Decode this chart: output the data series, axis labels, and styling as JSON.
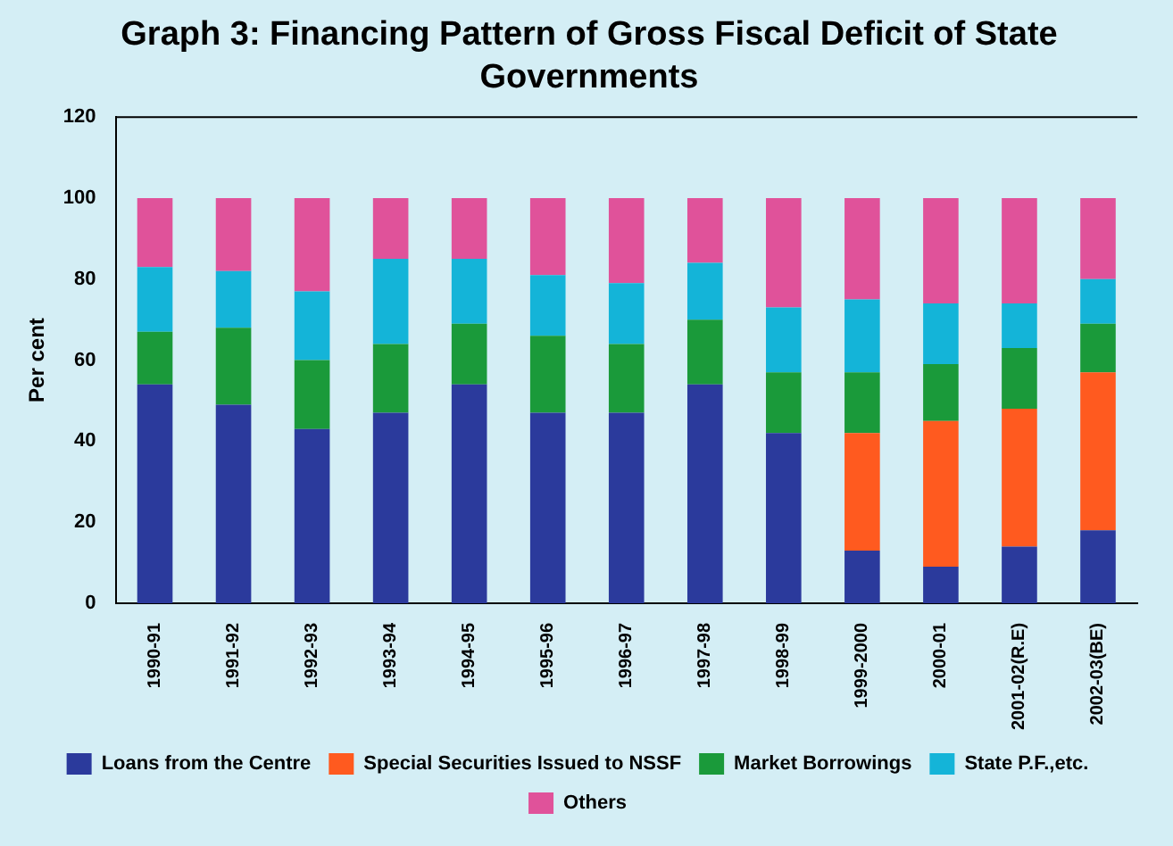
{
  "chart_data": {
    "type": "bar",
    "stacked": true,
    "title": "Graph 3: Financing Pattern of Gross Fiscal Deficit of State Governments",
    "ylabel": "Per cent",
    "categories": [
      "1990-91",
      "1991-92",
      "1992-93",
      "1993-94",
      "1994-95",
      "1995-96",
      "1996-97",
      "1997-98",
      "1998-99",
      "1999-2000",
      "2000-01",
      "2001-02(R.E)",
      "2002-03(BE)"
    ],
    "series": [
      {
        "name": "Loans from the Centre",
        "color": "#2b3a9c",
        "values": [
          54,
          49,
          43,
          47,
          54,
          47,
          47,
          54,
          42,
          13,
          9,
          14,
          18
        ]
      },
      {
        "name": "Special Securities Issued to NSSF",
        "color": "#ff5a1f",
        "values": [
          0,
          0,
          0,
          0,
          0,
          0,
          0,
          0,
          0,
          29,
          36,
          34,
          39
        ]
      },
      {
        "name": "Market Borrowings",
        "color": "#1a9a3a",
        "values": [
          13,
          19,
          17,
          17,
          15,
          19,
          17,
          16,
          15,
          15,
          14,
          15,
          12
        ]
      },
      {
        "name": "State P.F.,etc.",
        "color": "#14b4d8",
        "values": [
          16,
          14,
          17,
          21,
          16,
          15,
          15,
          14,
          16,
          18,
          15,
          11,
          11
        ]
      },
      {
        "name": "Others",
        "color": "#e0529a",
        "values": [
          17,
          18,
          23,
          15,
          15,
          19,
          21,
          16,
          27,
          25,
          26,
          26,
          20
        ]
      }
    ],
    "ylim": [
      0,
      120
    ],
    "yticks": [
      0,
      20,
      40,
      60,
      80,
      100,
      120
    ],
    "grid": false,
    "legend": "bottom"
  }
}
